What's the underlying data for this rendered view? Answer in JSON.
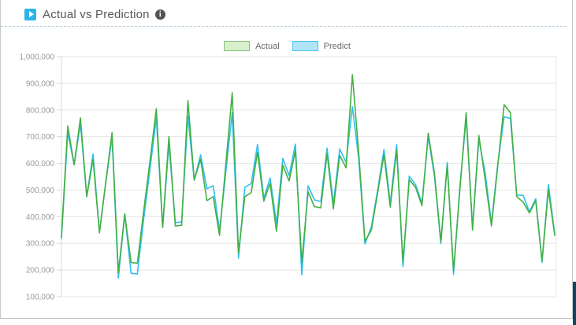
{
  "header": {
    "title": "Actual vs Prediction",
    "info_icon_glyph": "i"
  },
  "legend": {
    "items": [
      {
        "label": "Actual",
        "swatch_fill": "#d9efcb",
        "swatch_border": "#7cc47b"
      },
      {
        "label": "Predict",
        "swatch_fill": "#b0e4f6",
        "swatch_border": "#4ac4ef"
      }
    ]
  },
  "colors": {
    "accent_play_button": "#2fb3e6",
    "actual_line": "#43b044",
    "predict_line": "#2ec0f0",
    "gridline": "#e5e5e5",
    "axis_line": "#d8d8d8",
    "tick_label": "#9a9a9a",
    "panel_border": "#c9c9c9",
    "dashed_separator": "#b6ccd9",
    "edge_scrollbar": "#0d4660"
  },
  "chart_data": {
    "type": "line",
    "title": "Actual vs Prediction",
    "xlabel": "",
    "ylabel": "",
    "x_tick_labels_visible": false,
    "grid": true,
    "legend_position": "top-center",
    "ylim": [
      100000,
      1000000
    ],
    "yticks": [
      100000,
      200000,
      300000,
      400000,
      500000,
      600000,
      700000,
      800000,
      900000,
      1000000
    ],
    "x": [
      1,
      2,
      3,
      4,
      5,
      6,
      7,
      8,
      9,
      10,
      11,
      12,
      13,
      14,
      15,
      16,
      17,
      18,
      19,
      20,
      21,
      22,
      23,
      24,
      25,
      26,
      27,
      28,
      29,
      30,
      31,
      32,
      33,
      34,
      35,
      36,
      37,
      38,
      39,
      40,
      41,
      42,
      43,
      44,
      45,
      46,
      47,
      48,
      49,
      50,
      51,
      52,
      53,
      54,
      55,
      56,
      57,
      58,
      59,
      60,
      61,
      62,
      63,
      64,
      65,
      66,
      67,
      68,
      69,
      70,
      71,
      72,
      73,
      74,
      75,
      76,
      77,
      78,
      79
    ],
    "series": [
      {
        "name": "Actual",
        "values": [
          325000,
          740000,
          595000,
          770000,
          475000,
          615000,
          340000,
          528000,
          715000,
          190000,
          410000,
          228000,
          225000,
          420000,
          610000,
          805000,
          360000,
          700000,
          365000,
          368000,
          835000,
          537000,
          615000,
          460000,
          475000,
          330000,
          600000,
          865000,
          265000,
          475000,
          490000,
          642000,
          458000,
          525000,
          345000,
          593000,
          534000,
          647000,
          228000,
          493000,
          438000,
          433000,
          637000,
          429000,
          630000,
          583000,
          932000,
          640000,
          308000,
          350000,
          490000,
          632000,
          436000,
          650000,
          230000,
          539000,
          510000,
          441000,
          713000,
          560000,
          305000,
          593000,
          197000,
          500000,
          790000,
          350000,
          705000,
          540000,
          365000,
          593000,
          820000,
          790000,
          475000,
          455000,
          414000,
          460000,
          234000,
          500000,
          330000
        ]
      },
      {
        "name": "Predict",
        "values": [
          318000,
          715000,
          595000,
          748000,
          475000,
          635000,
          340000,
          528000,
          697000,
          170000,
          410000,
          188000,
          185000,
          390000,
          580000,
          770000,
          360000,
          672000,
          378000,
          380000,
          778000,
          537000,
          632000,
          505000,
          516000,
          347000,
          570000,
          790000,
          245000,
          510000,
          524000,
          670000,
          470000,
          545000,
          375000,
          618000,
          554000,
          672000,
          182000,
          516000,
          463000,
          457000,
          657000,
          446000,
          654000,
          603000,
          812000,
          617000,
          298000,
          362000,
          500000,
          652000,
          451000,
          670000,
          213000,
          552000,
          520000,
          451000,
          701000,
          548000,
          300000,
          603000,
          183000,
          512000,
          770000,
          360000,
          690000,
          565000,
          375000,
          600000,
          775000,
          768000,
          481000,
          480000,
          418000,
          467000,
          228000,
          521000,
          335000
        ]
      }
    ]
  }
}
